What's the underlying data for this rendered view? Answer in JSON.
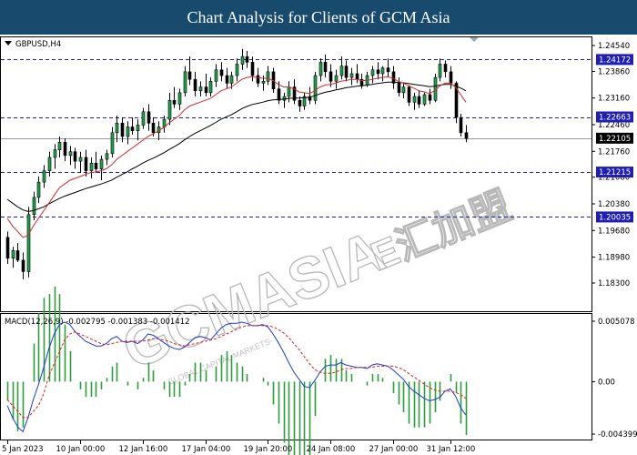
{
  "header": {
    "title": "Chart Analysis for Clients of GCM Asia"
  },
  "watermark": {
    "text": "GCMASIA",
    "suffix": "E汇加盟",
    "tagline": "GLOBAL CAPITAL MARKETS"
  },
  "chart_data": {
    "type": "candlestick",
    "symbol_label": "GBPUSD,H4",
    "price_axis_ticks": [
      "1.24540",
      "1.23860",
      "1.23160",
      "1.22460",
      "1.21760",
      "1.21080",
      "1.20380",
      "1.19680",
      "1.18980",
      "1.18300"
    ],
    "current_price": "1.22105",
    "horizontal_levels": [
      {
        "value": 1.24172,
        "label": "1.24172"
      },
      {
        "value": 1.22663,
        "label": "1.22663"
      },
      {
        "value": 1.21215,
        "label": "1.21215"
      },
      {
        "value": 1.20035,
        "label": "1.20035"
      }
    ],
    "x_ticks": [
      "5 Jan 2023",
      "10 Jan 00:00",
      "12 Jan 16:00",
      "17 Jan 04:00",
      "19 Jan 20:00",
      "24 Jan 08:00",
      "27 Jan 00:00",
      "31 Jan 12:00"
    ],
    "ylim": [
      1.183,
      1.2454
    ],
    "ohlc": [
      [
        1.195,
        1.1965,
        1.188,
        1.1895
      ],
      [
        1.1895,
        1.1925,
        1.187,
        1.1915
      ],
      [
        1.1915,
        1.1935,
        1.1885,
        1.189
      ],
      [
        1.189,
        1.191,
        1.184,
        1.186
      ],
      [
        1.186,
        1.203,
        1.1845,
        1.201
      ],
      [
        1.201,
        1.207,
        1.1995,
        1.2055
      ],
      [
        1.2055,
        1.211,
        1.204,
        1.2095
      ],
      [
        1.2095,
        1.214,
        1.208,
        1.2125
      ],
      [
        1.2125,
        1.2175,
        1.211,
        1.216
      ],
      [
        1.216,
        1.2195,
        1.213,
        1.218
      ],
      [
        1.218,
        1.2215,
        1.216,
        1.22
      ],
      [
        1.22,
        1.221,
        1.215,
        1.2165
      ],
      [
        1.2165,
        1.219,
        1.214,
        1.2175
      ],
      [
        1.2175,
        1.2185,
        1.213,
        1.215
      ],
      [
        1.215,
        1.2175,
        1.212,
        1.216
      ],
      [
        1.216,
        1.218,
        1.211,
        1.2125
      ],
      [
        1.2125,
        1.216,
        1.2105,
        1.2145
      ],
      [
        1.2145,
        1.2175,
        1.212,
        1.213
      ],
      [
        1.213,
        1.2165,
        1.21,
        1.2155
      ],
      [
        1.2155,
        1.218,
        1.214,
        1.217
      ],
      [
        1.217,
        1.224,
        1.216,
        1.2225
      ],
      [
        1.2225,
        1.227,
        1.22,
        1.225
      ],
      [
        1.225,
        1.2265,
        1.22,
        1.2215
      ],
      [
        1.2215,
        1.2255,
        1.2195,
        1.224
      ],
      [
        1.224,
        1.2265,
        1.222,
        1.223
      ],
      [
        1.223,
        1.226,
        1.2205,
        1.2245
      ],
      [
        1.2245,
        1.229,
        1.2235,
        1.228
      ],
      [
        1.228,
        1.23,
        1.223,
        1.225
      ],
      [
        1.225,
        1.2265,
        1.2215,
        1.2225
      ],
      [
        1.2225,
        1.2255,
        1.2205,
        1.224
      ],
      [
        1.224,
        1.227,
        1.2225,
        1.226
      ],
      [
        1.226,
        1.233,
        1.2245,
        1.231
      ],
      [
        1.231,
        1.2345,
        1.229,
        1.23
      ],
      [
        1.23,
        1.234,
        1.2285,
        1.233
      ],
      [
        1.233,
        1.24,
        1.232,
        1.2385
      ],
      [
        1.2385,
        1.2425,
        1.235,
        1.2365
      ],
      [
        1.2365,
        1.2385,
        1.232,
        1.2335
      ],
      [
        1.2335,
        1.236,
        1.232,
        1.2345
      ],
      [
        1.2345,
        1.238,
        1.232,
        1.233
      ],
      [
        1.233,
        1.237,
        1.232,
        1.236
      ],
      [
        1.236,
        1.2405,
        1.2345,
        1.239
      ],
      [
        1.239,
        1.241,
        1.236,
        1.2375
      ],
      [
        1.2375,
        1.2395,
        1.234,
        1.2355
      ],
      [
        1.2355,
        1.2385,
        1.234,
        1.2375
      ],
      [
        1.2375,
        1.242,
        1.236,
        1.2405
      ],
      [
        1.2405,
        1.2445,
        1.239,
        1.2425
      ],
      [
        1.2425,
        1.244,
        1.2395,
        1.241
      ],
      [
        1.241,
        1.2425,
        1.236,
        1.2375
      ],
      [
        1.2375,
        1.2395,
        1.2345,
        1.2355
      ],
      [
        1.2355,
        1.2375,
        1.2335,
        1.236
      ],
      [
        1.236,
        1.24,
        1.235,
        1.2385
      ],
      [
        1.2385,
        1.2395,
        1.233,
        1.234
      ],
      [
        1.234,
        1.236,
        1.23,
        1.231
      ],
      [
        1.231,
        1.233,
        1.229,
        1.232
      ],
      [
        1.232,
        1.236,
        1.2305,
        1.2345
      ],
      [
        1.2345,
        1.2365,
        1.23,
        1.231
      ],
      [
        1.231,
        1.232,
        1.228,
        1.2295
      ],
      [
        1.2295,
        1.233,
        1.2285,
        1.232
      ],
      [
        1.232,
        1.2345,
        1.23,
        1.231
      ],
      [
        1.231,
        1.2385,
        1.23,
        1.2375
      ],
      [
        1.2375,
        1.242,
        1.236,
        1.241
      ],
      [
        1.241,
        1.243,
        1.237,
        1.2385
      ],
      [
        1.2385,
        1.2405,
        1.2345,
        1.236
      ],
      [
        1.236,
        1.239,
        1.234,
        1.2375
      ],
      [
        1.2375,
        1.2425,
        1.2365,
        1.24
      ],
      [
        1.24,
        1.2415,
        1.236,
        1.237
      ],
      [
        1.237,
        1.2395,
        1.235,
        1.238
      ],
      [
        1.238,
        1.2405,
        1.2355,
        1.2365
      ],
      [
        1.2365,
        1.238,
        1.234,
        1.235
      ],
      [
        1.235,
        1.2385,
        1.2345,
        1.2375
      ],
      [
        1.2375,
        1.24,
        1.2355,
        1.239
      ],
      [
        1.239,
        1.241,
        1.2365,
        1.238
      ],
      [
        1.238,
        1.24,
        1.236,
        1.2395
      ],
      [
        1.2395,
        1.242,
        1.237,
        1.2385
      ],
      [
        1.2385,
        1.24,
        1.234,
        1.2355
      ],
      [
        1.2355,
        1.237,
        1.232,
        1.233
      ],
      [
        1.233,
        1.2355,
        1.2315,
        1.2345
      ],
      [
        1.2345,
        1.235,
        1.2295,
        1.2305
      ],
      [
        1.2305,
        1.233,
        1.2285,
        1.232
      ],
      [
        1.232,
        1.2335,
        1.229,
        1.23
      ],
      [
        1.23,
        1.233,
        1.2295,
        1.2325
      ],
      [
        1.2325,
        1.234,
        1.23,
        1.231
      ],
      [
        1.231,
        1.238,
        1.2305,
        1.237
      ],
      [
        1.237,
        1.242,
        1.236,
        1.2405
      ],
      [
        1.2405,
        1.2415,
        1.237,
        1.2385
      ],
      [
        1.2385,
        1.24,
        1.234,
        1.2355
      ],
      [
        1.2355,
        1.236,
        1.225,
        1.2265
      ],
      [
        1.2265,
        1.2275,
        1.2215,
        1.2225
      ],
      [
        1.2225,
        1.2245,
        1.22,
        1.221
      ]
    ],
    "ema_red": [
      1.2,
      1.198,
      1.1965,
      1.195,
      1.1955,
      1.198,
      1.2,
      1.202,
      1.204,
      1.206,
      1.208,
      1.209,
      1.21,
      1.2105,
      1.211,
      1.2115,
      1.212,
      1.2122,
      1.2125,
      1.213,
      1.214,
      1.2155,
      1.2165,
      1.2175,
      1.2185,
      1.2195,
      1.2205,
      1.2215,
      1.2222,
      1.223,
      1.2238,
      1.225,
      1.226,
      1.227,
      1.2285,
      1.2295,
      1.23,
      1.2305,
      1.231,
      1.2315,
      1.2325,
      1.2335,
      1.234,
      1.2345,
      1.2355,
      1.2365,
      1.237,
      1.2372,
      1.237,
      1.2368,
      1.2368,
      1.2362,
      1.2352,
      1.2345,
      1.2345,
      1.234,
      1.2332,
      1.233,
      1.2328,
      1.2335,
      1.2345,
      1.235,
      1.2352,
      1.2355,
      1.236,
      1.2362,
      1.2365,
      1.2365,
      1.2362,
      1.2362,
      1.2365,
      1.2368,
      1.237,
      1.2372,
      1.2368,
      1.236,
      1.2355,
      1.2348,
      1.2342,
      1.2335,
      1.2332,
      1.2328,
      1.2335,
      1.2348,
      1.2355,
      1.2355,
      1.2345,
      1.2325,
      1.2305
    ],
    "ema_black": [
      1.205,
      1.204,
      1.203,
      1.2022,
      1.2018,
      1.202,
      1.2025,
      1.203,
      1.2038,
      1.2045,
      1.2052,
      1.2058,
      1.2063,
      1.2068,
      1.2073,
      1.2078,
      1.2082,
      1.2086,
      1.209,
      1.2095,
      1.21,
      1.2108,
      1.2115,
      1.2122,
      1.213,
      1.2137,
      1.2145,
      1.2152,
      1.2158,
      1.2165,
      1.2172,
      1.218,
      1.2188,
      1.2196,
      1.2206,
      1.2215,
      1.2223,
      1.223,
      1.2237,
      1.2244,
      1.2252,
      1.226,
      1.2266,
      1.2272,
      1.228,
      1.2288,
      1.2294,
      1.2299,
      1.2302,
      1.2305,
      1.2309,
      1.2311,
      1.2312,
      1.2313,
      1.2315,
      1.2316,
      1.2316,
      1.2317,
      1.2318,
      1.2322,
      1.2327,
      1.2331,
      1.2334,
      1.2337,
      1.234,
      1.2343,
      1.2345,
      1.2347,
      1.2348,
      1.235,
      1.2352,
      1.2354,
      1.2356,
      1.2358,
      1.2358,
      1.2357,
      1.2356,
      1.2354,
      1.2352,
      1.235,
      1.2348,
      1.2346,
      1.2347,
      1.235,
      1.2352,
      1.2352,
      1.2348,
      1.2342,
      1.2335
    ],
    "macd": {
      "label": "MACD(12,26,9) -0.002795 -0.001383 -0.001412",
      "axis_ticks": [
        "0.005078",
        "0.00",
        "-0.004399"
      ],
      "ylim": [
        -0.00465,
        0.00535
      ],
      "line": [
        -0.002,
        -0.003,
        -0.0038,
        -0.0042,
        -0.003,
        -0.0015,
        -0.0002,
        0.0012,
        0.0028,
        0.004,
        0.0048,
        0.005,
        0.0048,
        0.0042,
        0.0038,
        0.0034,
        0.0032,
        0.003,
        0.003,
        0.0032,
        0.0036,
        0.0038,
        0.0034,
        0.0033,
        0.0034,
        0.0032,
        0.0035,
        0.004,
        0.0039,
        0.0036,
        0.0033,
        0.003,
        0.0028,
        0.0027,
        0.0029,
        0.0033,
        0.0037,
        0.0038,
        0.0037,
        0.0035,
        0.004,
        0.0045,
        0.0048,
        0.0049,
        0.0049,
        0.005,
        0.0049,
        0.0047,
        0.0047,
        0.0048,
        0.0046,
        0.004,
        0.0033,
        0.0025,
        0.0016,
        0.0008,
        0.0002,
        -0.0004,
        -0.0005,
        0.0001,
        0.0008,
        0.0013,
        0.0014,
        0.0014,
        0.0016,
        0.0014,
        0.0013,
        0.0012,
        0.0012,
        0.0011,
        0.0014,
        0.0015,
        0.0014,
        0.0013,
        0.001,
        0.0006,
        0.0002,
        -0.0004,
        -0.0008,
        -0.0011,
        -0.0014,
        -0.0016,
        -0.0015,
        -0.0013,
        -0.0008,
        -0.0006,
        -0.0012,
        -0.0022,
        -0.0028
      ],
      "signal": [
        -0.0015,
        -0.002,
        -0.0025,
        -0.003,
        -0.003,
        -0.0025,
        -0.002,
        -0.001,
        0.0005,
        0.0015,
        0.0025,
        0.0035,
        0.004,
        0.0042,
        0.004,
        0.0038,
        0.0036,
        0.0034,
        0.0032,
        0.0031,
        0.0032,
        0.0033,
        0.0034,
        0.0034,
        0.0034,
        0.0034,
        0.0034,
        0.0035,
        0.0036,
        0.0036,
        0.0035,
        0.0034,
        0.0032,
        0.0031,
        0.003,
        0.0031,
        0.0032,
        0.0033,
        0.0034,
        0.0035,
        0.0036,
        0.0038,
        0.004,
        0.0042,
        0.0044,
        0.0046,
        0.0047,
        0.0047,
        0.0047,
        0.0047,
        0.0047,
        0.0046,
        0.0044,
        0.0041,
        0.0037,
        0.0032,
        0.0027,
        0.0021,
        0.0015,
        0.001,
        0.0008,
        0.0007,
        0.0007,
        0.0008,
        0.001,
        0.0011,
        0.0011,
        0.0012,
        0.0012,
        0.0012,
        0.0012,
        0.0013,
        0.0013,
        0.0013,
        0.0013,
        0.0012,
        0.001,
        0.0007,
        0.0004,
        0.0001,
        -0.0002,
        -0.0005,
        -0.0007,
        -0.0008,
        -0.0008,
        -0.0008,
        -0.0009,
        -0.0011,
        -0.0014
      ]
    }
  }
}
